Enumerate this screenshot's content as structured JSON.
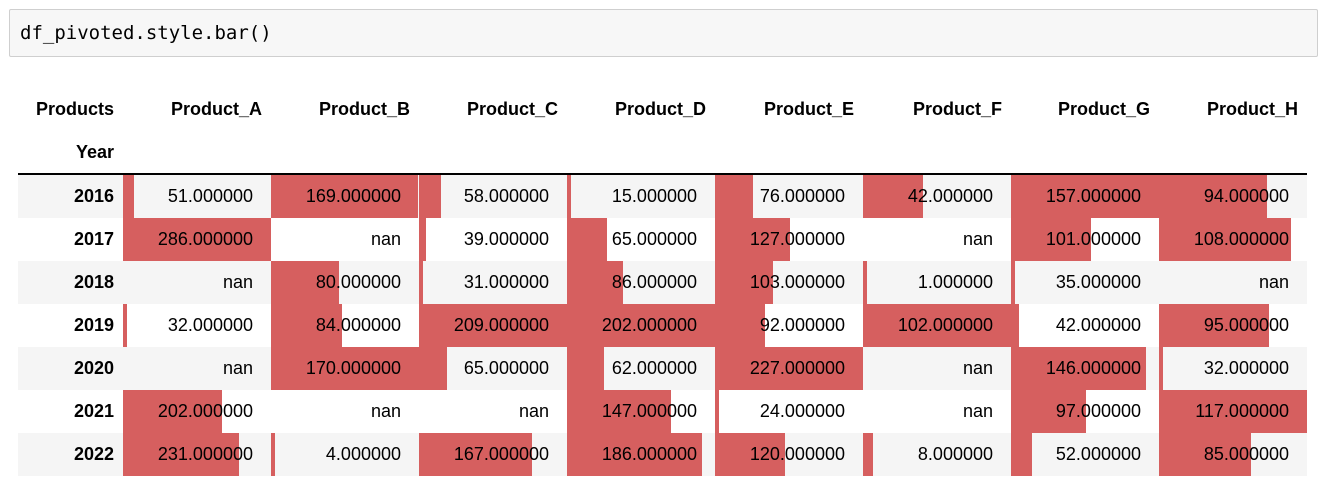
{
  "code_cell": {
    "source": "df_pivoted.style.bar()"
  },
  "table": {
    "columns_name": "Products",
    "index_name": "Year",
    "columns": [
      "Product_A",
      "Product_B",
      "Product_C",
      "Product_D",
      "Product_E",
      "Product_F",
      "Product_G",
      "Product_H"
    ],
    "bar_color": "#d65f5f",
    "rows": [
      {
        "year": "2016",
        "cells": [
          {
            "text": "51.000000",
            "value": 51
          },
          {
            "text": "169.000000",
            "value": 169
          },
          {
            "text": "58.000000",
            "value": 58
          },
          {
            "text": "15.000000",
            "value": 15
          },
          {
            "text": "76.000000",
            "value": 76
          },
          {
            "text": "42.000000",
            "value": 42
          },
          {
            "text": "157.000000",
            "value": 157
          },
          {
            "text": "94.000000",
            "value": 94
          }
        ]
      },
      {
        "year": "2017",
        "cells": [
          {
            "text": "286.000000",
            "value": 286
          },
          {
            "text": "nan",
            "value": null
          },
          {
            "text": "39.000000",
            "value": 39
          },
          {
            "text": "65.000000",
            "value": 65
          },
          {
            "text": "127.000000",
            "value": 127
          },
          {
            "text": "nan",
            "value": null
          },
          {
            "text": "101.000000",
            "value": 101
          },
          {
            "text": "108.000000",
            "value": 108
          }
        ]
      },
      {
        "year": "2018",
        "cells": [
          {
            "text": "nan",
            "value": null
          },
          {
            "text": "80.000000",
            "value": 80
          },
          {
            "text": "31.000000",
            "value": 31
          },
          {
            "text": "86.000000",
            "value": 86
          },
          {
            "text": "103.000000",
            "value": 103
          },
          {
            "text": "1.000000",
            "value": 1
          },
          {
            "text": "35.000000",
            "value": 35
          },
          {
            "text": "nan",
            "value": null
          }
        ]
      },
      {
        "year": "2019",
        "cells": [
          {
            "text": "32.000000",
            "value": 32
          },
          {
            "text": "84.000000",
            "value": 84
          },
          {
            "text": "209.000000",
            "value": 209
          },
          {
            "text": "202.000000",
            "value": 202
          },
          {
            "text": "92.000000",
            "value": 92
          },
          {
            "text": "102.000000",
            "value": 102
          },
          {
            "text": "42.000000",
            "value": 42
          },
          {
            "text": "95.000000",
            "value": 95
          }
        ]
      },
      {
        "year": "2020",
        "cells": [
          {
            "text": "nan",
            "value": null
          },
          {
            "text": "170.000000",
            "value": 170
          },
          {
            "text": "65.000000",
            "value": 65
          },
          {
            "text": "62.000000",
            "value": 62
          },
          {
            "text": "227.000000",
            "value": 227
          },
          {
            "text": "nan",
            "value": null
          },
          {
            "text": "146.000000",
            "value": 146
          },
          {
            "text": "32.000000",
            "value": 32
          }
        ]
      },
      {
        "year": "2021",
        "cells": [
          {
            "text": "202.000000",
            "value": 202
          },
          {
            "text": "nan",
            "value": null
          },
          {
            "text": "nan",
            "value": null
          },
          {
            "text": "147.000000",
            "value": 147
          },
          {
            "text": "24.000000",
            "value": 24
          },
          {
            "text": "nan",
            "value": null
          },
          {
            "text": "97.000000",
            "value": 97
          },
          {
            "text": "117.000000",
            "value": 117
          }
        ]
      },
      {
        "year": "2022",
        "cells": [
          {
            "text": "231.000000",
            "value": 231
          },
          {
            "text": "4.000000",
            "value": 4
          },
          {
            "text": "167.000000",
            "value": 167
          },
          {
            "text": "186.000000",
            "value": 186
          },
          {
            "text": "120.000000",
            "value": 120
          },
          {
            "text": "8.000000",
            "value": 8
          },
          {
            "text": "52.000000",
            "value": 52
          },
          {
            "text": "85.000000",
            "value": 85
          }
        ]
      }
    ]
  }
}
